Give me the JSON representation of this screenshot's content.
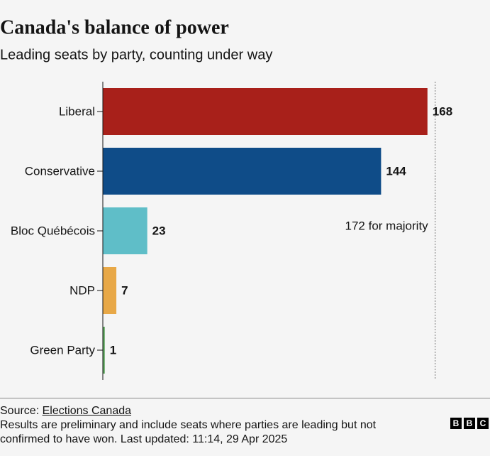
{
  "chart_data": {
    "type": "bar",
    "orientation": "horizontal",
    "title": "Canada's balance of power",
    "subtitle": "Leading seats by party, counting under way",
    "categories": [
      "Liberal",
      "Conservative",
      "Bloc Québécois",
      "NDP",
      "Green Party"
    ],
    "values": [
      168,
      144,
      23,
      7,
      1
    ],
    "colors": [
      "#a8201a",
      "#0f4c88",
      "#5fbec8",
      "#e8a847",
      "#5aa35a"
    ],
    "xlim": [
      0,
      200
    ],
    "reference_line": {
      "value": 172,
      "label": "172 for majority"
    }
  },
  "footer": {
    "source_label": "Source:",
    "source_link": "Elections Canada",
    "note": "Results are preliminary and include seats where parties are leading but not confirmed to have won. Last updated: 11:14, 29 Apr 2025",
    "logo": [
      "B",
      "B",
      "C"
    ]
  }
}
